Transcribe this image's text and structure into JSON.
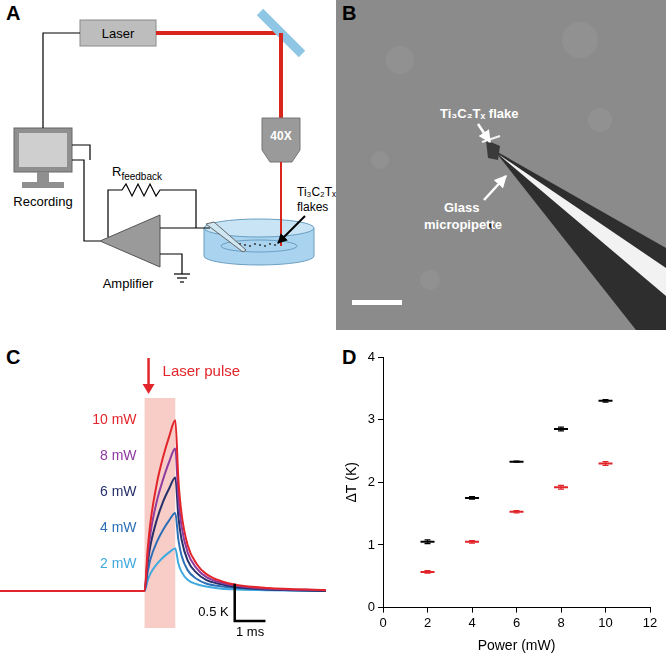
{
  "panel_labels": [
    "A",
    "B",
    "C",
    "D"
  ],
  "diagram_a": {
    "laser": "Laser",
    "recording": "Recording",
    "feedback": {
      "main": "R",
      "sub": "feedback"
    },
    "amplifier": "Amplifier",
    "objective": "40X",
    "flakes": [
      "Ti₃C₂Tₓ",
      "flakes"
    ]
  },
  "image_b": {
    "flake": "Ti₃C₂Tₓ flake",
    "pipette": [
      "Glass",
      "micropipette"
    ]
  },
  "chart_data": [
    {
      "type": "line",
      "x": [
        -4.7,
        -2,
        0,
        0.1,
        0.2,
        0.4,
        0.6,
        0.8,
        1.0,
        1.1,
        1.2,
        1.4,
        1.7,
        2.0,
        2.5,
        3.0,
        4.0,
        5.9
      ],
      "series": [
        {
          "name": "10 mW",
          "color": "#e2252b",
          "values": [
            0,
            0,
            0,
            0.55,
            0.95,
            1.45,
            1.8,
            2.08,
            2.3,
            1.5,
            1.05,
            0.62,
            0.36,
            0.23,
            0.13,
            0.08,
            0.04,
            0.01
          ]
        },
        {
          "name": "8 mW",
          "color": "#8e3a9e",
          "values": [
            0,
            0,
            0,
            0.46,
            0.8,
            1.21,
            1.5,
            1.74,
            1.92,
            1.25,
            0.88,
            0.52,
            0.3,
            0.19,
            0.11,
            0.07,
            0.03,
            0.01
          ]
        },
        {
          "name": "6 mW",
          "color": "#27306b",
          "values": [
            0,
            0,
            0,
            0.37,
            0.63,
            0.96,
            1.2,
            1.38,
            1.53,
            1.0,
            0.7,
            0.41,
            0.24,
            0.15,
            0.09,
            0.05,
            0.02,
            0
          ]
        },
        {
          "name": "4 mW",
          "color": "#2d6fb7",
          "values": [
            0,
            0,
            0,
            0.25,
            0.44,
            0.66,
            0.82,
            0.95,
            1.05,
            0.69,
            0.48,
            0.28,
            0.16,
            0.1,
            0.06,
            0.04,
            0.02,
            0
          ]
        },
        {
          "name": "2 mW",
          "color": "#3fa9e0",
          "values": [
            0,
            0,
            0,
            0.14,
            0.24,
            0.36,
            0.45,
            0.52,
            0.57,
            0.37,
            0.26,
            0.15,
            0.09,
            0.06,
            0.03,
            0.02,
            0.01,
            0
          ]
        }
      ],
      "xlim": [
        -4.7,
        5.9
      ],
      "ylim": [
        -0.5,
        2.6
      ],
      "tick_labels": false,
      "grid": false,
      "annotations": {
        "pulse": {
          "start": 0,
          "end": 1,
          "label": "Laser pulse"
        },
        "scale_bar": {
          "x": 1,
          "x_label": "1 ms",
          "y": 0.5,
          "y_label": "0.5 K"
        }
      }
    },
    {
      "type": "scatter",
      "xlabel": "Power (mW)",
      "ylabel": "ΔT (K)",
      "x": [
        2,
        4,
        6,
        8,
        10
      ],
      "series": [
        {
          "color": "#000000",
          "marker": "line",
          "values": [
            1.05,
            1.75,
            2.33,
            2.85,
            3.3
          ],
          "errors": [
            0.03,
            0.02,
            0.01,
            0.03,
            0.02
          ]
        },
        {
          "color": "#e2252b",
          "marker": "line",
          "values": [
            0.57,
            1.05,
            1.53,
            1.92,
            2.3
          ],
          "errors": [
            0.02,
            0.02,
            0.02,
            0.03,
            0.03
          ]
        }
      ],
      "xlim": [
        0,
        12
      ],
      "ylim": [
        0,
        4
      ],
      "xticks": [
        0,
        2,
        4,
        6,
        8,
        10,
        12
      ],
      "yticks": [
        0,
        1,
        2,
        3,
        4
      ],
      "grid": false
    }
  ]
}
